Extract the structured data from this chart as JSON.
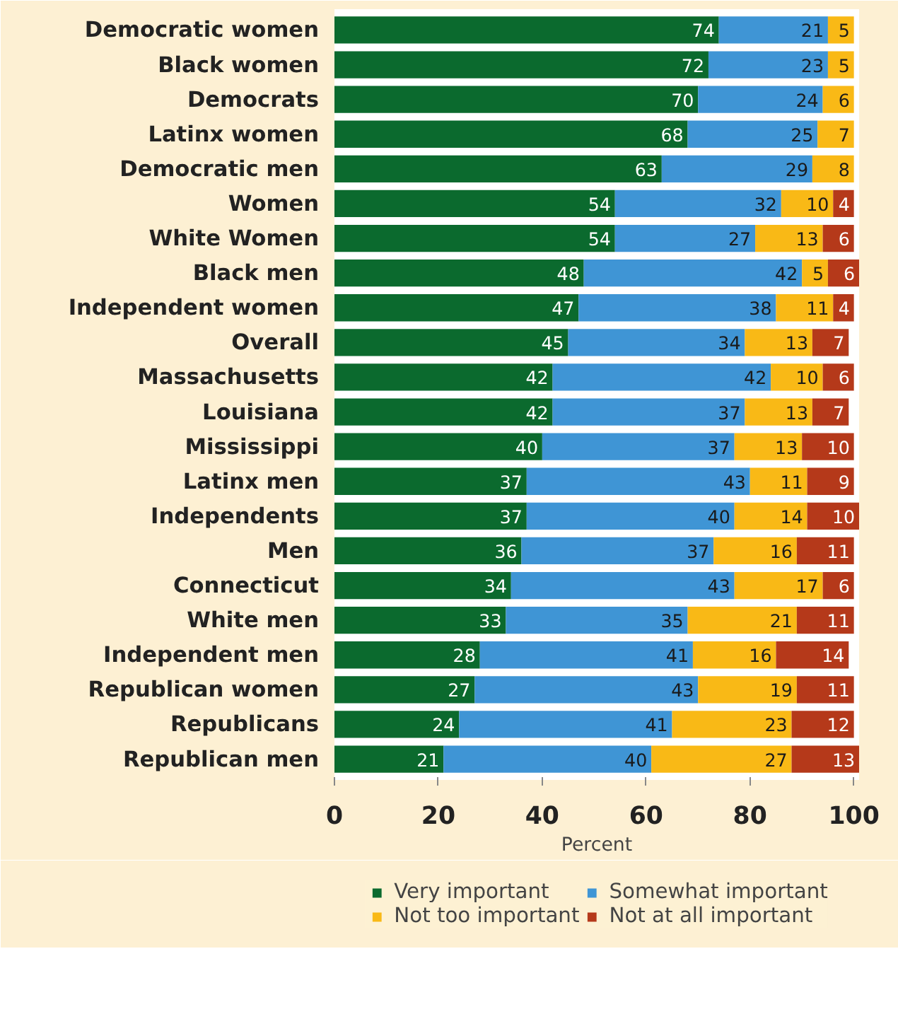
{
  "chart_data": {
    "type": "bar",
    "orientation": "horizontal",
    "stacked": true,
    "data_labels": true,
    "legend": "bottom",
    "grid": false,
    "xlabel": "Percent",
    "xlim": [
      0,
      101
    ],
    "xticks": [
      0,
      20,
      40,
      60,
      80,
      100
    ],
    "categories": [
      "Democratic women",
      "Black women",
      "Democrats",
      "Latinx women",
      "Democratic men",
      "Women",
      "White Women",
      "Black men",
      "Independent women",
      "Overall",
      "Massachusetts",
      "Louisiana",
      "Mississippi",
      "Latinx men",
      "Independents",
      "Men",
      "Connecticut",
      "White men",
      "Independent men",
      "Republican women",
      "Republicans",
      "Republican men"
    ],
    "series": [
      {
        "name": "Very important",
        "color": "#0b6a2e",
        "values": [
          74,
          72,
          70,
          68,
          63,
          54,
          54,
          48,
          47,
          45,
          42,
          42,
          40,
          37,
          37,
          36,
          34,
          33,
          28,
          27,
          24,
          21
        ]
      },
      {
        "name": "Somewhat important",
        "color": "#3f95d5",
        "values": [
          21,
          23,
          24,
          25,
          29,
          32,
          27,
          42,
          38,
          34,
          42,
          37,
          37,
          43,
          40,
          37,
          43,
          35,
          41,
          43,
          41,
          40
        ]
      },
      {
        "name": "Not too important",
        "color": "#f9b916",
        "values": [
          5,
          5,
          6,
          7,
          8,
          10,
          13,
          5,
          11,
          13,
          10,
          13,
          13,
          11,
          14,
          16,
          17,
          21,
          16,
          19,
          23,
          27
        ]
      },
      {
        "name": "Not at all important",
        "color": "#b5391a",
        "values": [
          null,
          null,
          null,
          null,
          null,
          4,
          6,
          6,
          4,
          7,
          6,
          7,
          10,
          9,
          10,
          11,
          6,
          11,
          14,
          11,
          12,
          13
        ]
      }
    ]
  }
}
